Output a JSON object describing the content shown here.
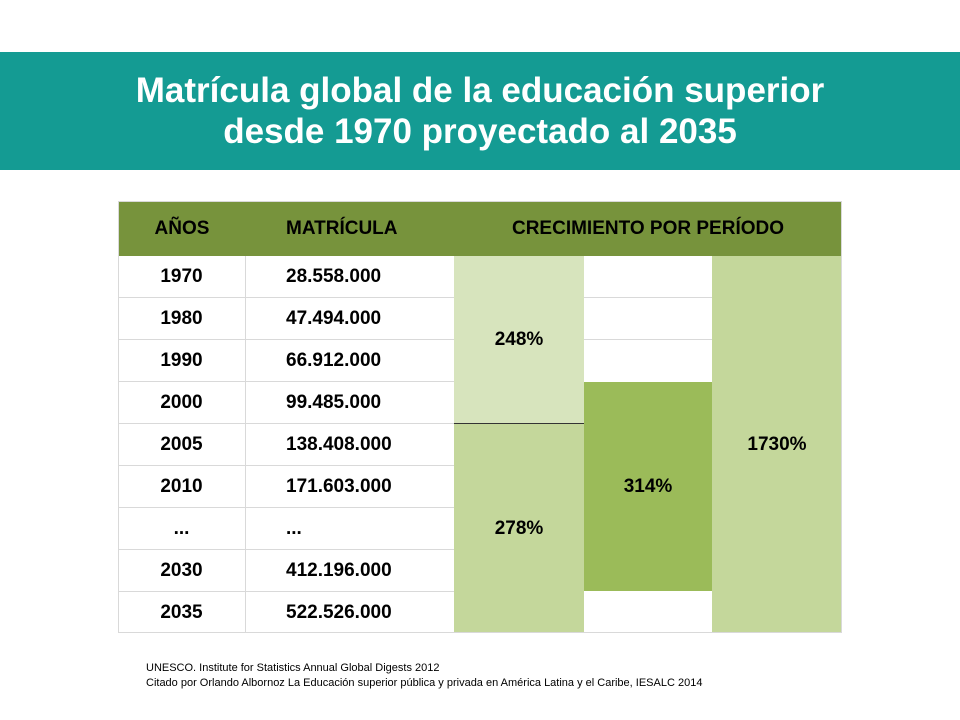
{
  "title": {
    "line1": "Matrícula global de la educación superior",
    "line2": "desde 1970 proyectado al 2035"
  },
  "table": {
    "headers": {
      "years": "AÑOS",
      "enrollment": "MATRÍCULA",
      "growth": "CRECIMIENTO POR PERÍODO"
    },
    "rows": [
      {
        "year": "1970",
        "enrollment": "28.558.000"
      },
      {
        "year": "1980",
        "enrollment": "47.494.000"
      },
      {
        "year": "1990",
        "enrollment": "66.912.000"
      },
      {
        "year": "2000",
        "enrollment": "99.485.000"
      },
      {
        "year": "2005",
        "enrollment": "138.408.000"
      },
      {
        "year": "2010",
        "enrollment": "171.603.000"
      },
      {
        "year": "...",
        "enrollment": "..."
      },
      {
        "year": "2030",
        "enrollment": "412.196.000"
      },
      {
        "year": "2035",
        "enrollment": "522.526.000"
      }
    ],
    "growth": {
      "period_1970_2000": "248%",
      "period_2005_2035": "278%",
      "period_2000_2030": "314%",
      "period_1970_2035": "1730%"
    },
    "colors": {
      "header": "#77933c",
      "light": "#d7e4bd",
      "medium": "#c4d79b",
      "dark": "#9bbb59"
    }
  },
  "source": {
    "line1": "UNESCO. Institute for Statistics Annual Global Digests 2012",
    "line2": "Citado por Orlando Albornoz  La Educación superior pública  y privada en América Latina y el Caribe, IESALC  2014"
  }
}
